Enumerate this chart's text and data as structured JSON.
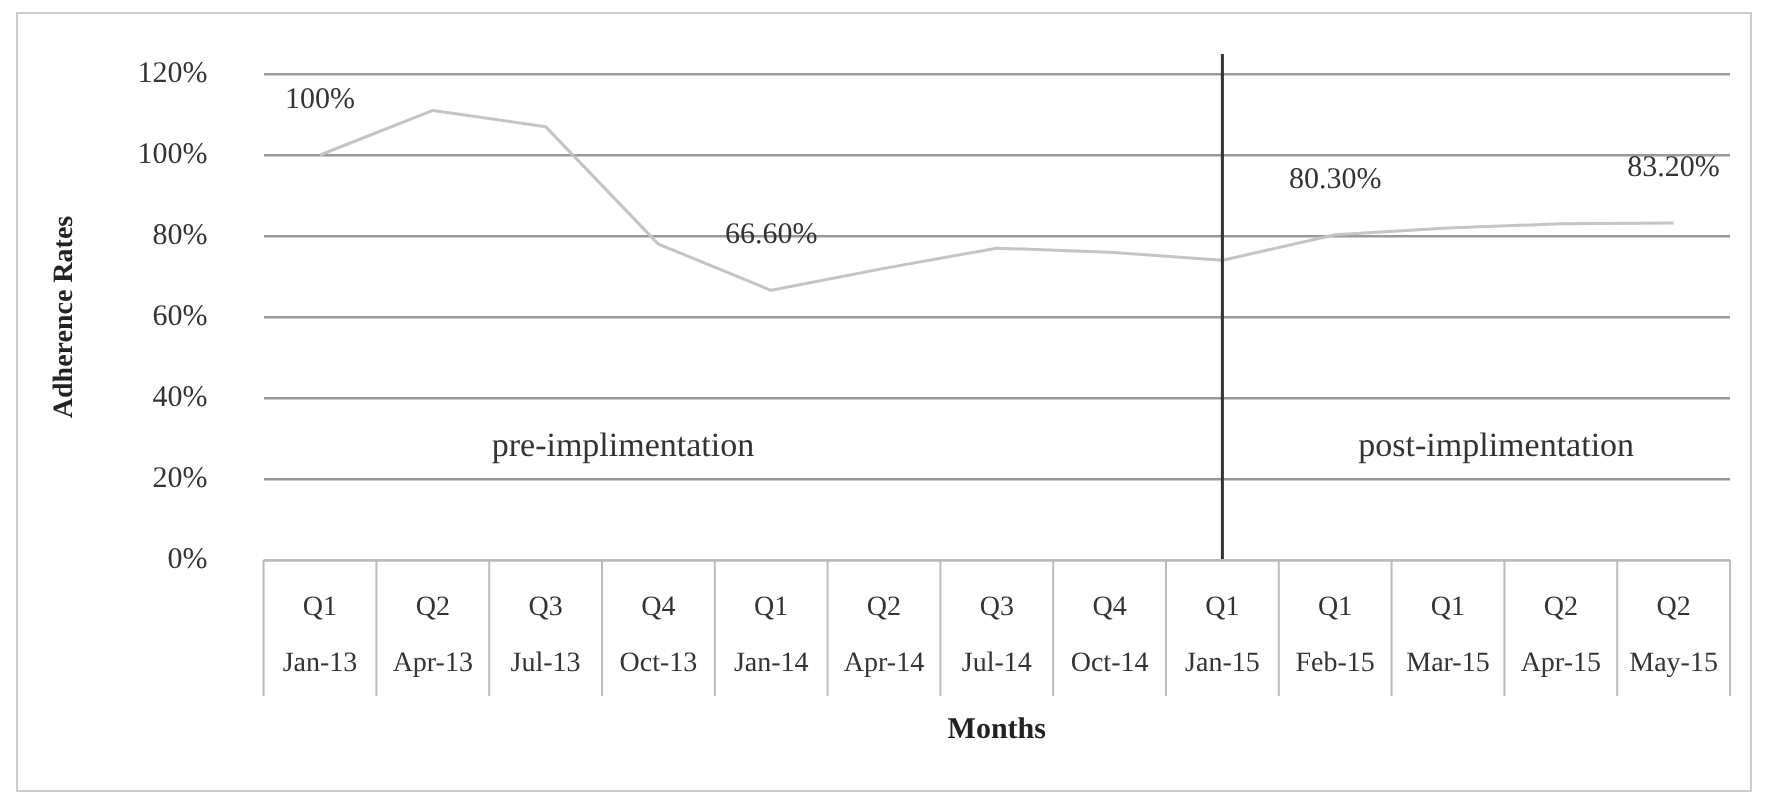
{
  "chart_data": {
    "type": "line",
    "xlabel": "Months",
    "ylabel": "Adherence Rates",
    "categories": [
      "Q1\nJan-13",
      "Q2\nApr-13",
      "Q3\nJul-13",
      "Q4\nOct-13",
      "Q1\nJan-14",
      "Q2\nApr-14",
      "Q3\nJul-14",
      "Q4\nOct-14",
      "Q1\nJan-15",
      "Q1\nFeb-15",
      "Q1\nMar-15",
      "Q2\nApr-15",
      "Q2\nMay-15"
    ],
    "series": [
      {
        "color": "#c4c4c4",
        "values": [
          100,
          111,
          107,
          78,
          66.6,
          72,
          77,
          76,
          74,
          80.3,
          82,
          83,
          83.2
        ],
        "value_labels": [
          "100%",
          null,
          null,
          null,
          "66.60%",
          null,
          null,
          null,
          null,
          "80.30%",
          null,
          null,
          "83.20%"
        ]
      }
    ],
    "ylim": [
      0,
      120
    ],
    "yticks": [
      {
        "value": 0,
        "label": "0%"
      },
      {
        "value": 20,
        "label": "20%"
      },
      {
        "value": 40,
        "label": "40%"
      },
      {
        "value": 60,
        "label": "60%"
      },
      {
        "value": 80,
        "label": "80%"
      },
      {
        "value": 100,
        "label": "100%"
      },
      {
        "value": 120,
        "label": "120%"
      }
    ],
    "grid": "y",
    "marker": "none",
    "line_style": "solid",
    "legend": false,
    "ref_lines": [
      {
        "axis": "x",
        "value": "Q1\nJan-15",
        "color": "#333333"
      }
    ],
    "annotations": [
      "pre-implimentation",
      "post-implimentation"
    ]
  }
}
